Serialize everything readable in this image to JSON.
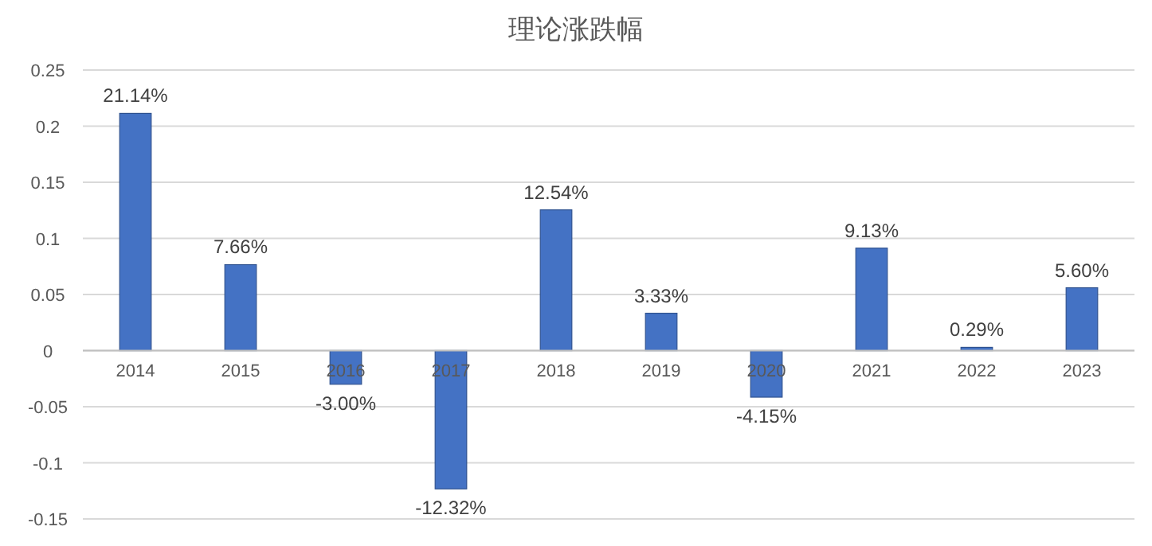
{
  "chart_data": {
    "type": "bar",
    "title": "理论涨跌幅",
    "categories": [
      "2014",
      "2015",
      "2016",
      "2017",
      "2018",
      "2019",
      "2020",
      "2021",
      "2022",
      "2023"
    ],
    "values": [
      0.2114,
      0.0766,
      -0.03,
      -0.1232,
      0.1254,
      0.0333,
      -0.0415,
      0.0913,
      0.0029,
      0.056
    ],
    "value_labels": [
      "21.14%",
      "7.66%",
      "-3.00%",
      "-12.32%",
      "12.54%",
      "3.33%",
      "-4.15%",
      "9.13%",
      "0.29%",
      "5.60%"
    ],
    "color": "#4472c4",
    "ylim": [
      -0.15,
      0.25
    ],
    "yticks": [
      -0.15,
      -0.1,
      -0.05,
      0,
      0.05,
      0.1,
      0.15,
      0.2,
      0.25
    ],
    "grid": "y"
  }
}
